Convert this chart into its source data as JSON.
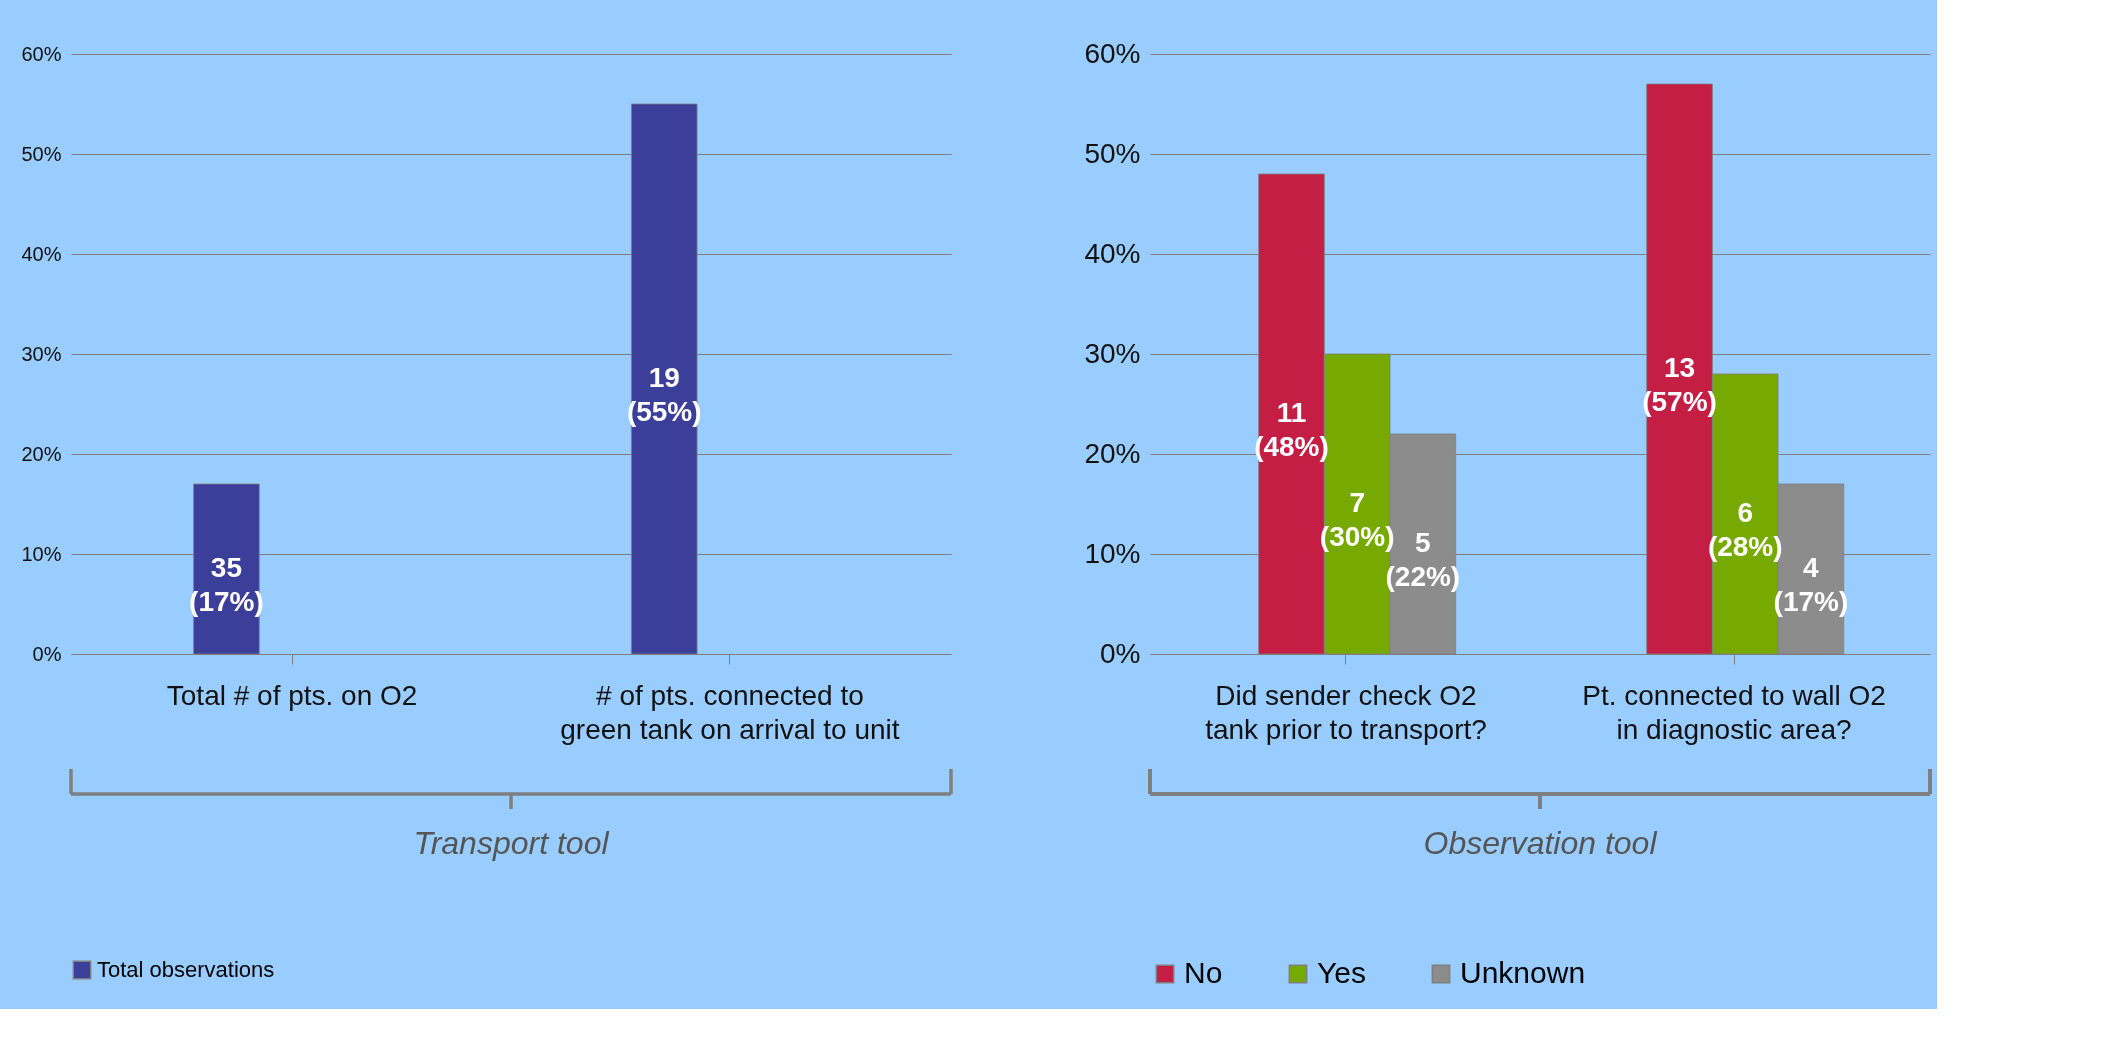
{
  "chart_data": [
    {
      "type": "bar",
      "categories": [
        "Total # of pts. on O2",
        "# of pts. connected to\ngreen tank on arrival to unit"
      ],
      "series": [
        {
          "name": "Total observations",
          "color": "#3c3f99",
          "values": [
            17,
            55
          ],
          "value_labels": [
            "35\n(17%)",
            "19\n(55%)"
          ]
        }
      ],
      "ylim": [
        0,
        60
      ],
      "yticks": [
        {
          "value": 0,
          "label": "0%"
        },
        {
          "value": 10,
          "label": "10%"
        },
        {
          "value": 20,
          "label": "20%"
        },
        {
          "value": 30,
          "label": "30%"
        },
        {
          "value": 40,
          "label": "40%"
        },
        {
          "value": 50,
          "label": "50%"
        },
        {
          "value": 60,
          "label": "60%"
        }
      ],
      "grid": "y",
      "legend": "bottom",
      "annotations": [
        "Transport tool"
      ]
    },
    {
      "type": "bar",
      "categories": [
        "Did sender check O2\ntank prior to transport?",
        "Pt. connected to wall O2\nin diagnostic area?"
      ],
      "series": [
        {
          "name": "No",
          "color": "#c41e45",
          "values": [
            48,
            57
          ],
          "value_labels": [
            "11\n(48%)",
            "13\n(57%)"
          ]
        },
        {
          "name": "Yes",
          "color": "#77aa00",
          "values": [
            30,
            28
          ],
          "value_labels": [
            "7\n(30%)",
            "6\n(28%)"
          ]
        },
        {
          "name": "Unknown",
          "color": "#8c8c8c",
          "values": [
            22,
            17
          ],
          "value_labels": [
            "5\n(22%)",
            "4\n(17%)"
          ]
        }
      ],
      "ylim": [
        0,
        60
      ],
      "yticks": [
        {
          "value": 0,
          "label": "0%"
        },
        {
          "value": 10,
          "label": "10%"
        },
        {
          "value": 20,
          "label": "20%"
        },
        {
          "value": 30,
          "label": "30%"
        },
        {
          "value": 40,
          "label": "40%"
        },
        {
          "value": 50,
          "label": "50%"
        },
        {
          "value": 60,
          "label": "60%"
        }
      ],
      "grid": "y",
      "legend": "bottom",
      "annotations": [
        "Observation tool"
      ]
    }
  ]
}
